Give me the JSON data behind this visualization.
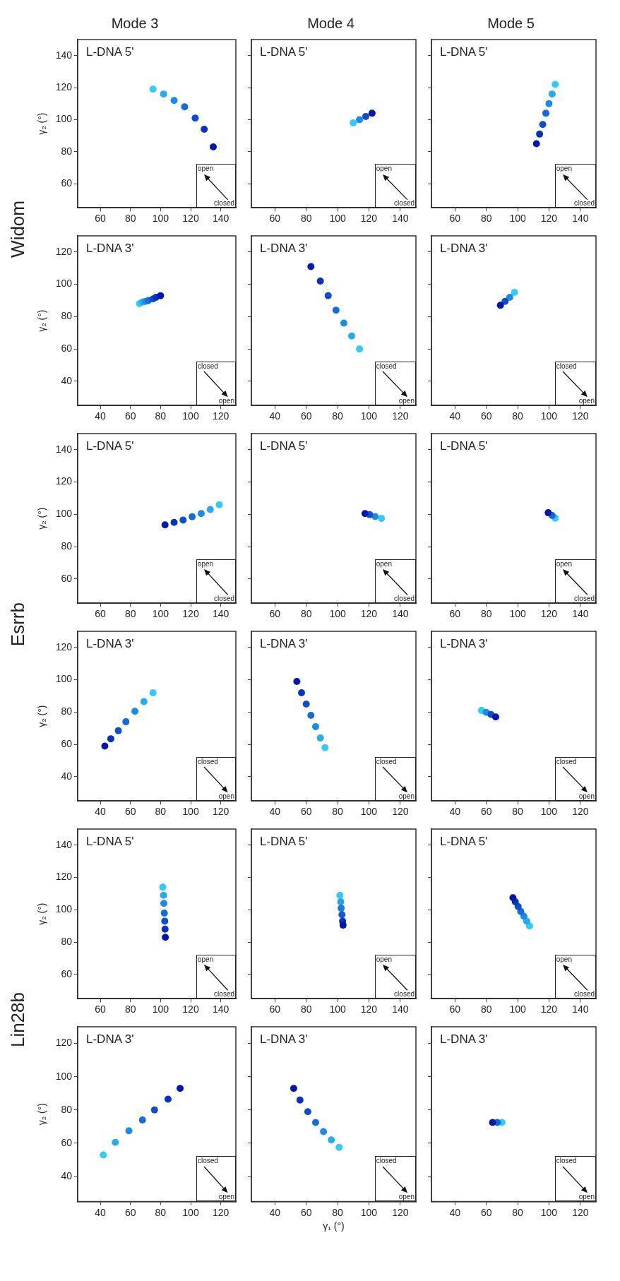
{
  "chart_data": [
    {
      "type": "scatter",
      "title": "Mode 3",
      "ylabel": "γ₂ (°)",
      "annotations": [
        "L-DNA 5'",
        "open",
        "closed",
        "Widom"
      ],
      "x": [
        95,
        102,
        109,
        116,
        123,
        129,
        135
      ],
      "values": [
        119,
        116,
        112,
        108,
        101,
        94,
        83
      ],
      "colors": [
        "#36c8f6",
        "#28aaec",
        "#1c8ce2",
        "#156cd6",
        "#0f4ec8",
        "#0932b9",
        "#0318aa"
      ],
      "xlim": [
        45,
        150
      ],
      "ylim": [
        45,
        150
      ],
      "xticks": [
        60,
        80,
        100,
        120,
        140
      ],
      "yticks": [
        60,
        80,
        100,
        120,
        140
      ],
      "marker": "circle"
    },
    {
      "type": "scatter",
      "title": "Mode 4",
      "annotations": [
        "L-DNA 5'",
        "open",
        "closed"
      ],
      "x": [
        110,
        114,
        118,
        122
      ],
      "values": [
        98,
        100,
        102,
        104
      ],
      "colors": [
        "#36c8f6",
        "#1c8ce2",
        "#0f4ec8",
        "#0318aa"
      ],
      "xlim": [
        45,
        150
      ],
      "ylim": [
        45,
        150
      ],
      "xticks": [
        60,
        80,
        100,
        120,
        140
      ],
      "yticks": [
        60,
        80,
        100,
        120,
        140
      ],
      "marker": "circle",
      "tick_labels": "x"
    },
    {
      "type": "scatter",
      "title": "Mode 5",
      "annotations": [
        "L-DNA 5'",
        "open",
        "closed"
      ],
      "x": [
        124,
        122,
        120,
        118,
        116,
        114,
        112
      ],
      "values": [
        122,
        116,
        110,
        104,
        97,
        91,
        85
      ],
      "colors": [
        "#36c8f6",
        "#28aaec",
        "#1c8ce2",
        "#156cd6",
        "#0f4ec8",
        "#0932b9",
        "#0318aa"
      ],
      "xlim": [
        45,
        150
      ],
      "ylim": [
        45,
        150
      ],
      "xticks": [
        60,
        80,
        100,
        120,
        140
      ],
      "yticks": [
        60,
        80,
        100,
        120,
        140
      ],
      "marker": "circle",
      "tick_labels": "x"
    },
    {
      "type": "scatter",
      "ylabel": "γ₂ (°)",
      "annotations": [
        "L-DNA 3'",
        "closed",
        "open"
      ],
      "x": [
        66,
        68,
        70,
        72,
        75,
        77,
        80
      ],
      "values": [
        88,
        89,
        89.5,
        90,
        91,
        92,
        93
      ],
      "colors": [
        "#36c8f6",
        "#28aaec",
        "#1c8ce2",
        "#156cd6",
        "#0f4ec8",
        "#0932b9",
        "#0318aa"
      ],
      "xlim": [
        25,
        130
      ],
      "ylim": [
        25,
        130
      ],
      "xticks": [
        40,
        60,
        80,
        100,
        120
      ],
      "yticks": [
        40,
        60,
        80,
        100,
        120
      ],
      "marker": "circle"
    },
    {
      "type": "scatter",
      "annotations": [
        "L-DNA 3'",
        "closed",
        "open"
      ],
      "x": [
        94,
        89,
        84,
        79,
        74,
        69,
        63
      ],
      "values": [
        60,
        68,
        76,
        84,
        93,
        102,
        111
      ],
      "colors": [
        "#36c8f6",
        "#28aaec",
        "#1c8ce2",
        "#156cd6",
        "#0f4ec8",
        "#0932b9",
        "#0318aa"
      ],
      "xlim": [
        25,
        130
      ],
      "ylim": [
        25,
        130
      ],
      "xticks": [
        40,
        60,
        80,
        100,
        120
      ],
      "yticks": [
        40,
        60,
        80,
        100,
        120
      ],
      "marker": "circle",
      "tick_labels": "x"
    },
    {
      "type": "scatter",
      "annotations": [
        "L-DNA 3'",
        "closed",
        "open"
      ],
      "x": [
        78,
        75,
        72,
        69
      ],
      "values": [
        95,
        92,
        89.5,
        87
      ],
      "colors": [
        "#36c8f6",
        "#1c8ce2",
        "#0f4ec8",
        "#0318aa"
      ],
      "xlim": [
        25,
        130
      ],
      "ylim": [
        25,
        130
      ],
      "xticks": [
        40,
        60,
        80,
        100,
        120
      ],
      "yticks": [
        40,
        60,
        80,
        100,
        120
      ],
      "marker": "circle",
      "tick_labels": "x"
    },
    {
      "type": "scatter",
      "ylabel": "γ₂ (°)",
      "annotations": [
        "L-DNA 5'",
        "open",
        "closed",
        "Esrrb"
      ],
      "x": [
        139,
        133,
        127,
        121,
        115,
        109,
        103
      ],
      "values": [
        106,
        103,
        100.5,
        98.5,
        96.5,
        95,
        93.5
      ],
      "colors": [
        "#36c8f6",
        "#28aaec",
        "#1c8ce2",
        "#156cd6",
        "#0f4ec8",
        "#0932b9",
        "#0318aa"
      ],
      "xlim": [
        45,
        150
      ],
      "ylim": [
        45,
        150
      ],
      "xticks": [
        60,
        80,
        100,
        120,
        140
      ],
      "yticks": [
        60,
        80,
        100,
        120,
        140
      ],
      "marker": "circle"
    },
    {
      "type": "scatter",
      "annotations": [
        "L-DNA 5'",
        "open",
        "closed"
      ],
      "x": [
        128,
        124,
        120.5,
        117.5
      ],
      "values": [
        97.5,
        98.6,
        99.8,
        100.5
      ],
      "colors": [
        "#36c8f6",
        "#1c8ce2",
        "#0f4ec8",
        "#0318aa"
      ],
      "xlim": [
        45,
        150
      ],
      "ylim": [
        45,
        150
      ],
      "xticks": [
        60,
        80,
        100,
        120,
        140
      ],
      "yticks": [
        60,
        80,
        100,
        120,
        140
      ],
      "marker": "circle",
      "tick_labels": "x"
    },
    {
      "type": "scatter",
      "annotations": [
        "L-DNA 5'",
        "open",
        "closed"
      ],
      "x": [
        124,
        122,
        119.5
      ],
      "values": [
        97.7,
        99.3,
        101
      ],
      "colors": [
        "#36c8f6",
        "#1466d4",
        "#0318aa"
      ],
      "xlim": [
        45,
        150
      ],
      "ylim": [
        45,
        150
      ],
      "xticks": [
        60,
        80,
        100,
        120,
        140
      ],
      "yticks": [
        60,
        80,
        100,
        120,
        140
      ],
      "marker": "circle",
      "tick_labels": "x"
    },
    {
      "type": "scatter",
      "ylabel": "γ₂ (°)",
      "annotations": [
        "L-DNA 3'",
        "closed",
        "open"
      ],
      "x": [
        75,
        69,
        63,
        57,
        52,
        47,
        43
      ],
      "values": [
        92,
        86.5,
        80.5,
        74,
        68.5,
        63.5,
        59
      ],
      "colors": [
        "#36c8f6",
        "#28aaec",
        "#1c8ce2",
        "#156cd6",
        "#0f4ec8",
        "#0932b9",
        "#0318aa"
      ],
      "xlim": [
        25,
        130
      ],
      "ylim": [
        25,
        130
      ],
      "xticks": [
        40,
        60,
        80,
        100,
        120
      ],
      "yticks": [
        40,
        60,
        80,
        100,
        120
      ],
      "marker": "circle"
    },
    {
      "type": "scatter",
      "annotations": [
        "L-DNA 3'",
        "closed",
        "open"
      ],
      "x": [
        72,
        69,
        66,
        63,
        60,
        57,
        54
      ],
      "values": [
        58,
        64,
        71,
        78,
        85,
        92,
        99
      ],
      "colors": [
        "#36c8f6",
        "#28aaec",
        "#1c8ce2",
        "#156cd6",
        "#0f4ec8",
        "#0932b9",
        "#0318aa"
      ],
      "xlim": [
        25,
        130
      ],
      "ylim": [
        25,
        130
      ],
      "xticks": [
        40,
        60,
        80,
        100,
        120
      ],
      "yticks": [
        40,
        60,
        80,
        100,
        120
      ],
      "marker": "circle",
      "tick_labels": "x"
    },
    {
      "type": "scatter",
      "annotations": [
        "L-DNA 3'",
        "closed",
        "open"
      ],
      "x": [
        57,
        60,
        63,
        66
      ],
      "values": [
        81,
        79.8,
        78.5,
        77
      ],
      "colors": [
        "#36c8f6",
        "#1c8ce2",
        "#0f4ec8",
        "#0318aa"
      ],
      "xlim": [
        25,
        130
      ],
      "ylim": [
        25,
        130
      ],
      "xticks": [
        40,
        60,
        80,
        100,
        120
      ],
      "yticks": [
        40,
        60,
        80,
        100,
        120
      ],
      "marker": "circle",
      "tick_labels": "x"
    },
    {
      "type": "scatter",
      "ylabel": "γ₂ (°)",
      "annotations": [
        "L-DNA 5'",
        "open",
        "closed",
        "Lin28b"
      ],
      "x": [
        101.5,
        102,
        102.2,
        102.5,
        102.8,
        103,
        103.2
      ],
      "values": [
        114,
        109,
        104,
        98,
        93,
        88,
        83
      ],
      "colors": [
        "#36c8f6",
        "#28aaec",
        "#1c8ce2",
        "#156cd6",
        "#0f4ec8",
        "#0932b9",
        "#0318aa"
      ],
      "xlim": [
        45,
        150
      ],
      "ylim": [
        45,
        150
      ],
      "xticks": [
        60,
        80,
        100,
        120,
        140
      ],
      "yticks": [
        60,
        80,
        100,
        120,
        140
      ],
      "marker": "circle"
    },
    {
      "type": "scatter",
      "annotations": [
        "L-DNA 5'",
        "open",
        "closed"
      ],
      "x": [
        101.5,
        102,
        102.3,
        102.8,
        103.2,
        103.5
      ],
      "values": [
        109,
        105,
        101,
        97,
        93,
        90.5
      ],
      "colors": [
        "#36c8f6",
        "#24a2ea",
        "#187cdc",
        "#1058cc",
        "#0836bb",
        "#0318aa"
      ],
      "xlim": [
        45,
        150
      ],
      "ylim": [
        45,
        150
      ],
      "xticks": [
        60,
        80,
        100,
        120,
        140
      ],
      "yticks": [
        60,
        80,
        100,
        120,
        140
      ],
      "marker": "circle",
      "tick_labels": "x"
    },
    {
      "type": "scatter",
      "annotations": [
        "L-DNA 5'",
        "open",
        "closed"
      ],
      "x": [
        107.6,
        105.8,
        104,
        102,
        100.3,
        98.5,
        97
      ],
      "values": [
        90,
        93,
        96,
        99,
        102,
        105,
        107.5
      ],
      "colors": [
        "#36c8f6",
        "#28aaec",
        "#1c8ce2",
        "#156cd6",
        "#0f4ec8",
        "#0932b9",
        "#0318aa"
      ],
      "xlim": [
        45,
        150
      ],
      "ylim": [
        45,
        150
      ],
      "xticks": [
        60,
        80,
        100,
        120,
        140
      ],
      "yticks": [
        60,
        80,
        100,
        120,
        140
      ],
      "marker": "circle",
      "tick_labels": "x"
    },
    {
      "type": "scatter",
      "ylabel": "γ₂ (°)",
      "annotations": [
        "L-DNA 3'",
        "closed",
        "open"
      ],
      "x": [
        42,
        50,
        59,
        68,
        76,
        85,
        93
      ],
      "values": [
        53,
        60.5,
        67.5,
        74,
        80,
        86.5,
        93
      ],
      "colors": [
        "#36c8f6",
        "#28aaec",
        "#1c8ce2",
        "#156cd6",
        "#0f4ec8",
        "#0932b9",
        "#0318aa"
      ],
      "xlim": [
        25,
        130
      ],
      "ylim": [
        25,
        130
      ],
      "xticks": [
        40,
        60,
        80,
        100,
        120
      ],
      "yticks": [
        40,
        60,
        80,
        100,
        120
      ],
      "marker": "circle"
    },
    {
      "type": "scatter",
      "xlabel": "γ₁ (°)",
      "annotations": [
        "L-DNA 3'",
        "closed",
        "open"
      ],
      "x": [
        81,
        76,
        71,
        66,
        61,
        56,
        52
      ],
      "values": [
        57.5,
        62,
        67,
        72.5,
        79,
        86,
        93
      ],
      "colors": [
        "#36c8f6",
        "#28aaec",
        "#1c8ce2",
        "#156cd6",
        "#0f4ec8",
        "#0932b9",
        "#0318aa"
      ],
      "xlim": [
        25,
        130
      ],
      "ylim": [
        25,
        130
      ],
      "xticks": [
        40,
        60,
        80,
        100,
        120
      ],
      "yticks": [
        40,
        60,
        80,
        100,
        120
      ],
      "marker": "circle",
      "tick_labels": "x"
    },
    {
      "type": "scatter",
      "annotations": [
        "L-DNA 3'",
        "closed",
        "open"
      ],
      "x": [
        70,
        67,
        64
      ],
      "values": [
        72.5,
        72.5,
        72.5
      ],
      "colors": [
        "#36c8f6",
        "#1466d4",
        "#0318aa"
      ],
      "xlim": [
        25,
        130
      ],
      "ylim": [
        25,
        130
      ],
      "xticks": [
        40,
        60,
        80,
        100,
        120
      ],
      "yticks": [
        40,
        60,
        80,
        100,
        120
      ],
      "marker": "circle",
      "tick_labels": "x"
    }
  ]
}
